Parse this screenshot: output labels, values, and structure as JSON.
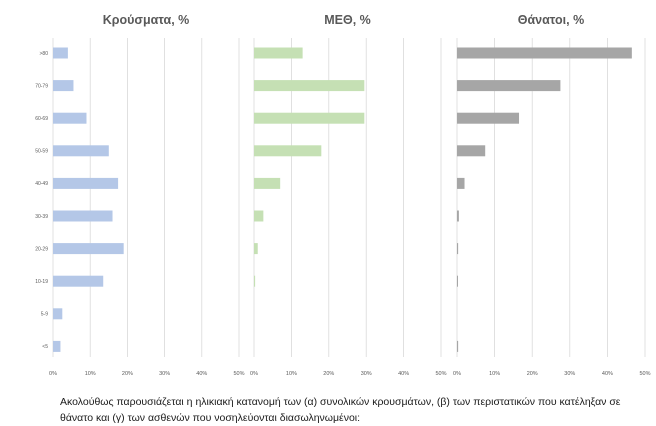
{
  "chart_data": [
    {
      "type": "bar",
      "orientation": "horizontal",
      "title": "Κρούσματα, %",
      "categories": [
        ">80",
        "70-79",
        "60-69",
        "50-59",
        "40-49",
        "30-39",
        "20-29",
        "10-19",
        "5-9",
        "<5"
      ],
      "values": [
        4,
        5.5,
        9,
        15,
        17.5,
        16,
        19,
        13.5,
        2.5,
        2
      ],
      "xlim": [
        0,
        50
      ],
      "xticks": [
        "0%",
        "10%",
        "20%",
        "30%",
        "40%",
        "50%"
      ],
      "color": "#b4c7e7",
      "grid": true
    },
    {
      "type": "bar",
      "orientation": "horizontal",
      "title": "ΜΕΘ, %",
      "categories": [
        ">80",
        "70-79",
        "60-69",
        "50-59",
        "40-49",
        "30-39",
        "20-29",
        "10-19",
        "5-9",
        "<5"
      ],
      "values": [
        13,
        29.5,
        29.5,
        18,
        7,
        2.5,
        1,
        0.3,
        0,
        0
      ],
      "xlim": [
        0,
        50
      ],
      "xticks": [
        "0%",
        "10%",
        "20%",
        "30%",
        "40%",
        "50%"
      ],
      "color": "#c5e0b4",
      "grid": true
    },
    {
      "type": "bar",
      "orientation": "horizontal",
      "title": "Θάνατοι, %",
      "categories": [
        ">80",
        "70-79",
        "60-69",
        "50-59",
        "40-49",
        "30-39",
        "20-29",
        "10-19",
        "5-9",
        "<5"
      ],
      "values": [
        46.5,
        27.5,
        16.5,
        7.5,
        2,
        0.5,
        0.3,
        0.2,
        0,
        0.3
      ],
      "xlim": [
        0,
        50
      ],
      "xticks": [
        "0%",
        "10%",
        "20%",
        "30%",
        "40%",
        "50%"
      ],
      "color": "#a6a6a6",
      "grid": true
    }
  ],
  "caption": "Ακολούθως παρουσιάζεται η ηλικιακή κατανομή των (α) συνολικών κρουσμάτων, (β) των περιστατικών που κατέληξαν σε θάνατο και (γ) των ασθενών που νοσηλεύονται διασωληνωμένοι:"
}
